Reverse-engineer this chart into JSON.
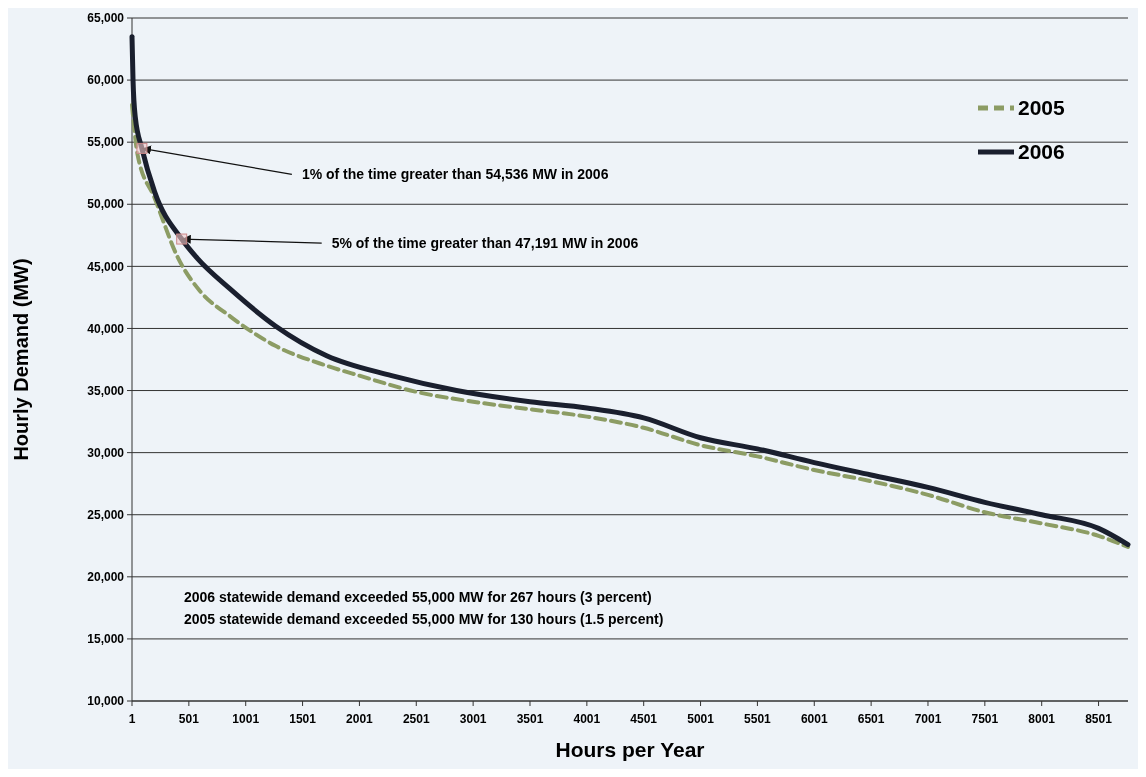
{
  "chart_data": {
    "type": "line",
    "xlabel": "Hours per Year",
    "ylabel": "Hourly Demand (MW)",
    "xlim": [
      1,
      8760
    ],
    "xticks": [
      1,
      501,
      1001,
      1501,
      2001,
      2501,
      3001,
      3501,
      4001,
      4501,
      5001,
      5501,
      6001,
      6501,
      7001,
      7501,
      8001,
      8501
    ],
    "ylim": [
      10000,
      65000
    ],
    "yticks": [
      {
        "value": 10000,
        "label": "10,000"
      },
      {
        "value": 15000,
        "label": "15,000"
      },
      {
        "value": 20000,
        "label": "20,000"
      },
      {
        "value": 25000,
        "label": "25,000"
      },
      {
        "value": 30000,
        "label": "30,000"
      },
      {
        "value": 35000,
        "label": "35,000"
      },
      {
        "value": 40000,
        "label": "40,000"
      },
      {
        "value": 45000,
        "label": "45,000"
      },
      {
        "value": 50000,
        "label": "50,000"
      },
      {
        "value": 55000,
        "label": "55,000"
      },
      {
        "value": 60000,
        "label": "60,000"
      },
      {
        "value": 65000,
        "label": "65,000"
      }
    ],
    "grid": "y",
    "legend": "top right",
    "marker": "none",
    "series": [
      {
        "name": "2005",
        "color": "#8c9c64",
        "line_style": "dashed",
        "x": [
          1,
          50,
          200,
          410,
          600,
          861,
          1262,
          1713,
          2000,
          2500,
          3001,
          3501,
          4001,
          4501,
          5001,
          5501,
          6001,
          6501,
          7001,
          7501,
          8001,
          8501,
          8760
        ],
        "values": [
          58000,
          54000,
          50500,
          45600,
          43000,
          41000,
          38600,
          37000,
          36200,
          34900,
          34100,
          33500,
          32900,
          32000,
          30600,
          29700,
          28600,
          27700,
          26600,
          25200,
          24300,
          23300,
          22400
        ]
      },
      {
        "name": "2006",
        "color": "#1a1f2e",
        "line_style": "solid",
        "x": [
          1,
          10,
          30,
          88,
          200,
          438,
          580,
          861,
          1262,
          1713,
          2284,
          2855,
          3501,
          4001,
          4501,
          5001,
          5501,
          6001,
          6501,
          7001,
          7501,
          8001,
          8501,
          8760
        ],
        "values": [
          63500,
          60000,
          57000,
          54500,
          51000,
          47200,
          45600,
          43200,
          40200,
          37800,
          36200,
          35000,
          34100,
          33600,
          32800,
          31200,
          30300,
          29200,
          28200,
          27200,
          26000,
          25000,
          23900,
          22600
        ]
      }
    ],
    "annotations": [
      {
        "text": "1% of the time greater than 54,536 MW in 2006",
        "x": 88,
        "y": 54500
      },
      {
        "text": "5% of the time greater than 47,191 MW in 2006",
        "x": 438,
        "y": 47200
      },
      "2006 statewide demand exceeded 55,000 MW for 267 hours (3 percent)",
      "2005 statewide demand exceeded 55,000 MW for 130 hours (1.5 percent)"
    ]
  }
}
